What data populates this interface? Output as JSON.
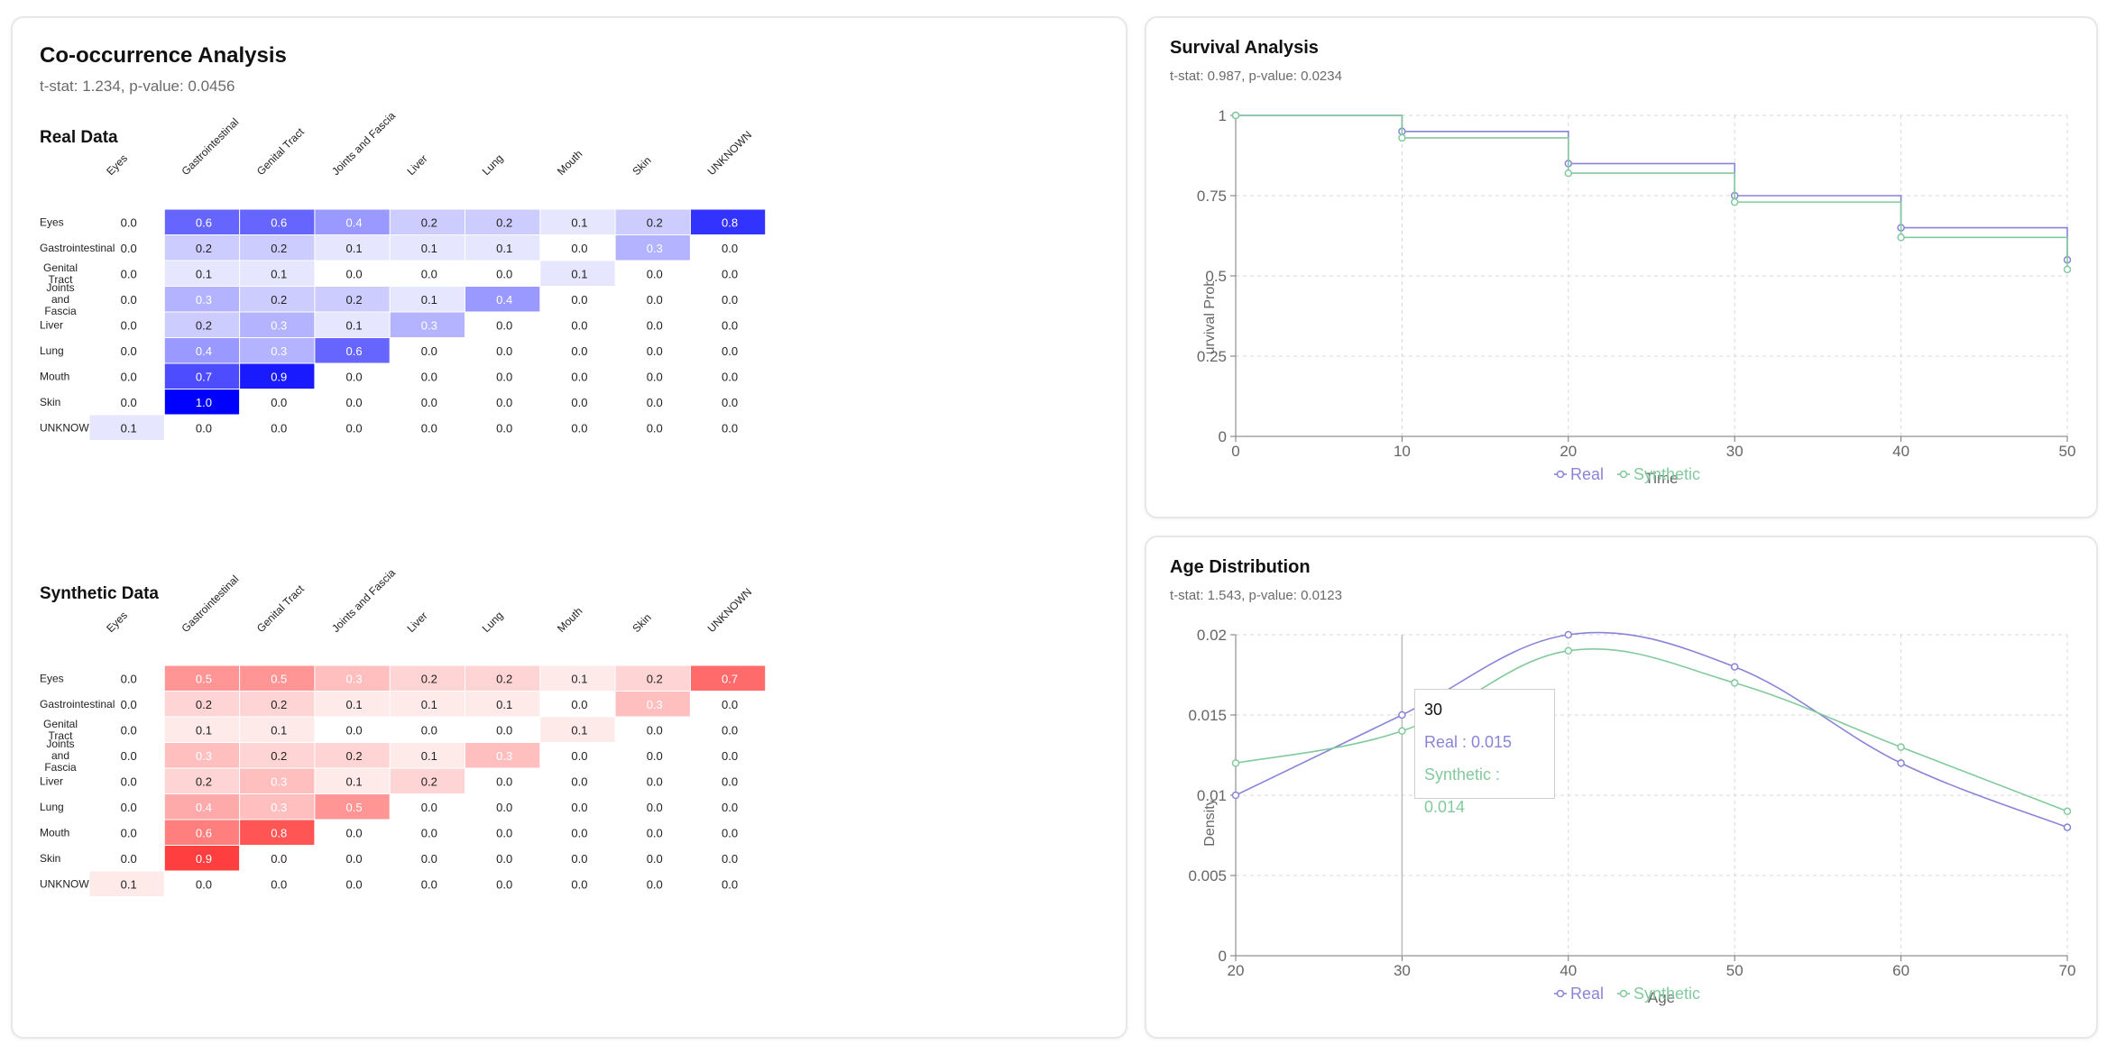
{
  "cooccurrence": {
    "title": "Co-occurrence Analysis",
    "subtitle": "t-stat: 1.234, p-value: 0.0456",
    "categories": [
      "Eyes",
      "Gastrointestinal",
      "Genital Tract",
      "Joints and Fascia",
      "Liver",
      "Lung",
      "Mouth",
      "Skin",
      "UNKNOWN"
    ],
    "real": {
      "label": "Real Data",
      "color": "#0000ff",
      "values": [
        [
          0.0,
          0.6,
          0.6,
          0.4,
          0.2,
          0.2,
          0.1,
          0.2,
          0.8
        ],
        [
          0.0,
          0.2,
          0.2,
          0.1,
          0.1,
          0.1,
          0.0,
          0.3,
          0.0
        ],
        [
          0.0,
          0.1,
          0.1,
          0.0,
          0.0,
          0.0,
          0.1,
          0.0,
          0.0
        ],
        [
          0.0,
          0.3,
          0.2,
          0.2,
          0.1,
          0.4,
          0.0,
          0.0,
          0.0
        ],
        [
          0.0,
          0.2,
          0.3,
          0.1,
          0.3,
          0.0,
          0.0,
          0.0,
          0.0
        ],
        [
          0.0,
          0.4,
          0.3,
          0.6,
          0.0,
          0.0,
          0.0,
          0.0,
          0.0
        ],
        [
          0.0,
          0.7,
          0.9,
          0.0,
          0.0,
          0.0,
          0.0,
          0.0,
          0.0
        ],
        [
          0.0,
          1.0,
          0.0,
          0.0,
          0.0,
          0.0,
          0.0,
          0.0,
          0.0
        ],
        [
          0.1,
          0.0,
          0.0,
          0.0,
          0.0,
          0.0,
          0.0,
          0.0,
          0.0
        ]
      ]
    },
    "synthetic": {
      "label": "Synthetic Data",
      "color": "#ff2a2a",
      "values": [
        [
          0.0,
          0.5,
          0.5,
          0.3,
          0.2,
          0.2,
          0.1,
          0.2,
          0.7
        ],
        [
          0.0,
          0.2,
          0.2,
          0.1,
          0.1,
          0.1,
          0.0,
          0.3,
          0.0
        ],
        [
          0.0,
          0.1,
          0.1,
          0.0,
          0.0,
          0.0,
          0.1,
          0.0,
          0.0
        ],
        [
          0.0,
          0.3,
          0.2,
          0.2,
          0.1,
          0.3,
          0.0,
          0.0,
          0.0
        ],
        [
          0.0,
          0.2,
          0.3,
          0.1,
          0.2,
          0.0,
          0.0,
          0.0,
          0.0
        ],
        [
          0.0,
          0.4,
          0.3,
          0.5,
          0.0,
          0.0,
          0.0,
          0.0,
          0.0
        ],
        [
          0.0,
          0.6,
          0.8,
          0.0,
          0.0,
          0.0,
          0.0,
          0.0,
          0.0
        ],
        [
          0.0,
          0.9,
          0.0,
          0.0,
          0.0,
          0.0,
          0.0,
          0.0,
          0.0
        ],
        [
          0.1,
          0.0,
          0.0,
          0.0,
          0.0,
          0.0,
          0.0,
          0.0,
          0.0
        ]
      ]
    }
  },
  "survival": {
    "title": "Survival Analysis",
    "subtitle": "t-stat: 0.987, p-value: 0.0234"
  },
  "age": {
    "title": "Age Distribution",
    "subtitle": "t-stat: 1.543, p-value: 0.0123",
    "tooltip": {
      "title": "30",
      "real": "Real : 0.015",
      "synthetic": "Synthetic : 0.014"
    }
  },
  "chart_data": [
    {
      "type": "heatmap",
      "title": "Real Data",
      "x_categories": [
        "Eyes",
        "Gastrointestinal",
        "Genital Tract",
        "Joints and Fascia",
        "Liver",
        "Lung",
        "Mouth",
        "Skin",
        "UNKNOWN"
      ],
      "y_categories": [
        "Eyes",
        "Gastrointestinal",
        "Genital Tract",
        "Joints and Fascia",
        "Liver",
        "Lung",
        "Mouth",
        "Skin",
        "UNKNOWN"
      ],
      "values": "see cooccurrence.real.values"
    },
    {
      "type": "heatmap",
      "title": "Synthetic Data",
      "x_categories": [
        "Eyes",
        "Gastrointestinal",
        "Genital Tract",
        "Joints and Fascia",
        "Liver",
        "Lung",
        "Mouth",
        "Skin",
        "UNKNOWN"
      ],
      "y_categories": [
        "Eyes",
        "Gastrointestinal",
        "Genital Tract",
        "Joints and Fascia",
        "Liver",
        "Lung",
        "Mouth",
        "Skin",
        "UNKNOWN"
      ],
      "values": "see cooccurrence.synthetic.values"
    },
    {
      "type": "line",
      "title": "Survival Analysis",
      "step": true,
      "x": [
        0,
        10,
        20,
        30,
        40,
        50
      ],
      "xlabel": "Time",
      "ylabel": "Survival Probability",
      "xlim": [
        0,
        50
      ],
      "ylim": [
        0,
        1
      ],
      "xticks": [
        "0",
        "10",
        "20",
        "30",
        "40",
        "50"
      ],
      "yticks": [
        "0",
        "0.25",
        "0.5",
        "0.75",
        "1"
      ],
      "grid": true,
      "legend": "bottom-center",
      "series": [
        {
          "name": "Real",
          "color": "#8884d8",
          "values": [
            1.0,
            0.95,
            0.85,
            0.75,
            0.65,
            0.55
          ]
        },
        {
          "name": "Synthetic",
          "color": "#82ca9d",
          "values": [
            1.0,
            0.93,
            0.82,
            0.73,
            0.62,
            0.52
          ]
        }
      ]
    },
    {
      "type": "line",
      "title": "Age Distribution",
      "x": [
        20,
        30,
        40,
        50,
        60,
        70
      ],
      "xlabel": "Age",
      "ylabel": "Density",
      "xlim": [
        20,
        70
      ],
      "ylim": [
        0,
        0.02
      ],
      "xticks": [
        "20",
        "30",
        "40",
        "50",
        "60",
        "70"
      ],
      "yticks": [
        "0",
        "0.005",
        "0.01",
        "0.015",
        "0.02"
      ],
      "grid": true,
      "legend": "bottom-center",
      "series": [
        {
          "name": "Real",
          "color": "#8884d8",
          "values": [
            0.01,
            0.015,
            0.02,
            0.018,
            0.012,
            0.008
          ]
        },
        {
          "name": "Synthetic",
          "color": "#82ca9d",
          "values": [
            0.012,
            0.014,
            0.019,
            0.017,
            0.013,
            0.009
          ]
        }
      ]
    }
  ]
}
